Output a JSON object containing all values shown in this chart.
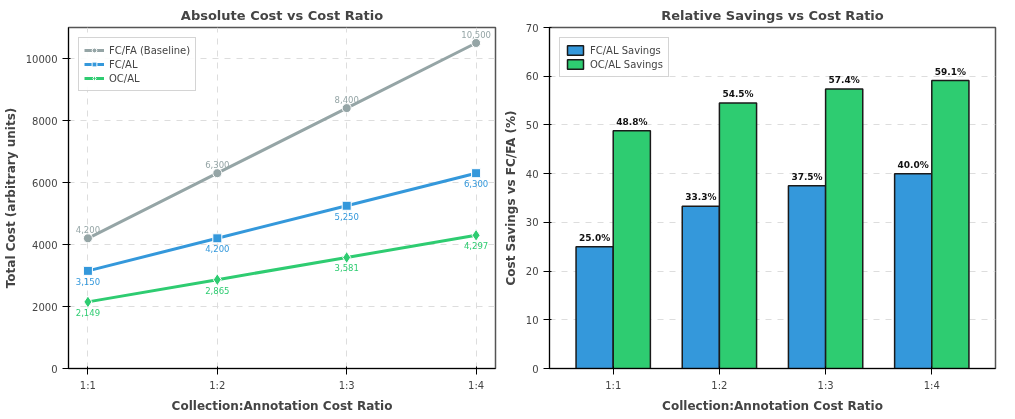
{
  "chart_data": [
    {
      "type": "line",
      "title": "Absolute Cost vs Cost Ratio",
      "xlabel": "Collection:Annotation Cost Ratio",
      "ylabel": "Total Cost (arbitrary units)",
      "categories": [
        "1:1",
        "1:2",
        "1:3",
        "1:4"
      ],
      "ylim": [
        0,
        11000
      ],
      "yticks": [
        0,
        2000,
        4000,
        6000,
        8000,
        10000
      ],
      "grid": true,
      "legend": "top left",
      "line_style": "solid",
      "series": [
        {
          "name": "FC/FA (Baseline)",
          "color": "#95a5a6",
          "marker": "circle",
          "values": [
            4200,
            6300,
            8400,
            10500
          ],
          "value_labels": [
            "4,200",
            "6,300",
            "8,400",
            "10,500"
          ]
        },
        {
          "name": "FC/AL",
          "color": "#3498db",
          "marker": "square",
          "values": [
            3150,
            4200,
            5250,
            6300
          ],
          "value_labels": [
            "3,150",
            "4,200",
            "5,250",
            "6,300"
          ]
        },
        {
          "name": "OC/AL",
          "color": "#2ecc71",
          "marker": "diamond",
          "values": [
            2149,
            2865,
            3581,
            4297
          ],
          "value_labels": [
            "2,149",
            "2,865",
            "3,581",
            "4,297"
          ]
        }
      ]
    },
    {
      "type": "bar",
      "title": "Relative Savings vs Cost Ratio",
      "xlabel": "Collection:Annotation Cost Ratio",
      "ylabel": "Cost Savings vs FC/FA (%)",
      "categories": [
        "1:1",
        "1:2",
        "1:3",
        "1:4"
      ],
      "ylim": [
        0,
        70
      ],
      "yticks": [
        0,
        10,
        20,
        30,
        40,
        50,
        60,
        70
      ],
      "grid": "y",
      "legend": "top left",
      "series": [
        {
          "name": "FC/AL Savings",
          "color": "#3498db",
          "values": [
            25.0,
            33.3,
            37.5,
            40.0
          ],
          "value_labels": [
            "25.0%",
            "33.3%",
            "37.5%",
            "40.0%"
          ]
        },
        {
          "name": "OC/AL Savings",
          "color": "#2ecc71",
          "values": [
            48.8,
            54.5,
            57.4,
            59.1
          ],
          "value_labels": [
            "48.8%",
            "54.5%",
            "57.4%",
            "59.1%"
          ]
        }
      ]
    }
  ]
}
